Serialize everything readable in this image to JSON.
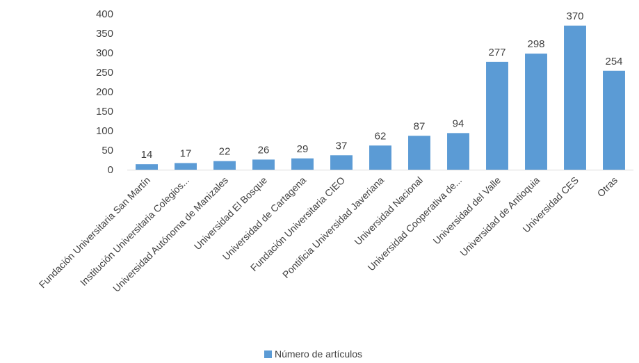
{
  "chart_data": {
    "type": "bar",
    "categories": [
      "Fundación Universitaria San Martín",
      "Institución Universitaria Colegios...",
      "Universidad Autónoma de Manizales",
      "Universidad El Bosque",
      "Universidad de Cartagena",
      "Fundación Universitaria CIEO",
      "Pontificia Universidad Javeriana",
      "Universidad Nacional",
      "Universidad Cooperativa de...",
      "Universidad del Valle",
      "Universidad de Antioquia",
      "Universidad CES",
      "Otras"
    ],
    "series": [
      {
        "name": "Número de artículos",
        "values": [
          14,
          17,
          22,
          26,
          29,
          37,
          62,
          87,
          94,
          277,
          298,
          370,
          254
        ],
        "color": "#5b9bd5"
      }
    ],
    "ylim": [
      0,
      400
    ],
    "yticks": [
      0,
      50,
      100,
      150,
      200,
      250,
      300,
      350,
      400
    ],
    "grid": false,
    "data_labels": true,
    "legend_position": "bottom",
    "axis_color": "#d9d9d9"
  }
}
